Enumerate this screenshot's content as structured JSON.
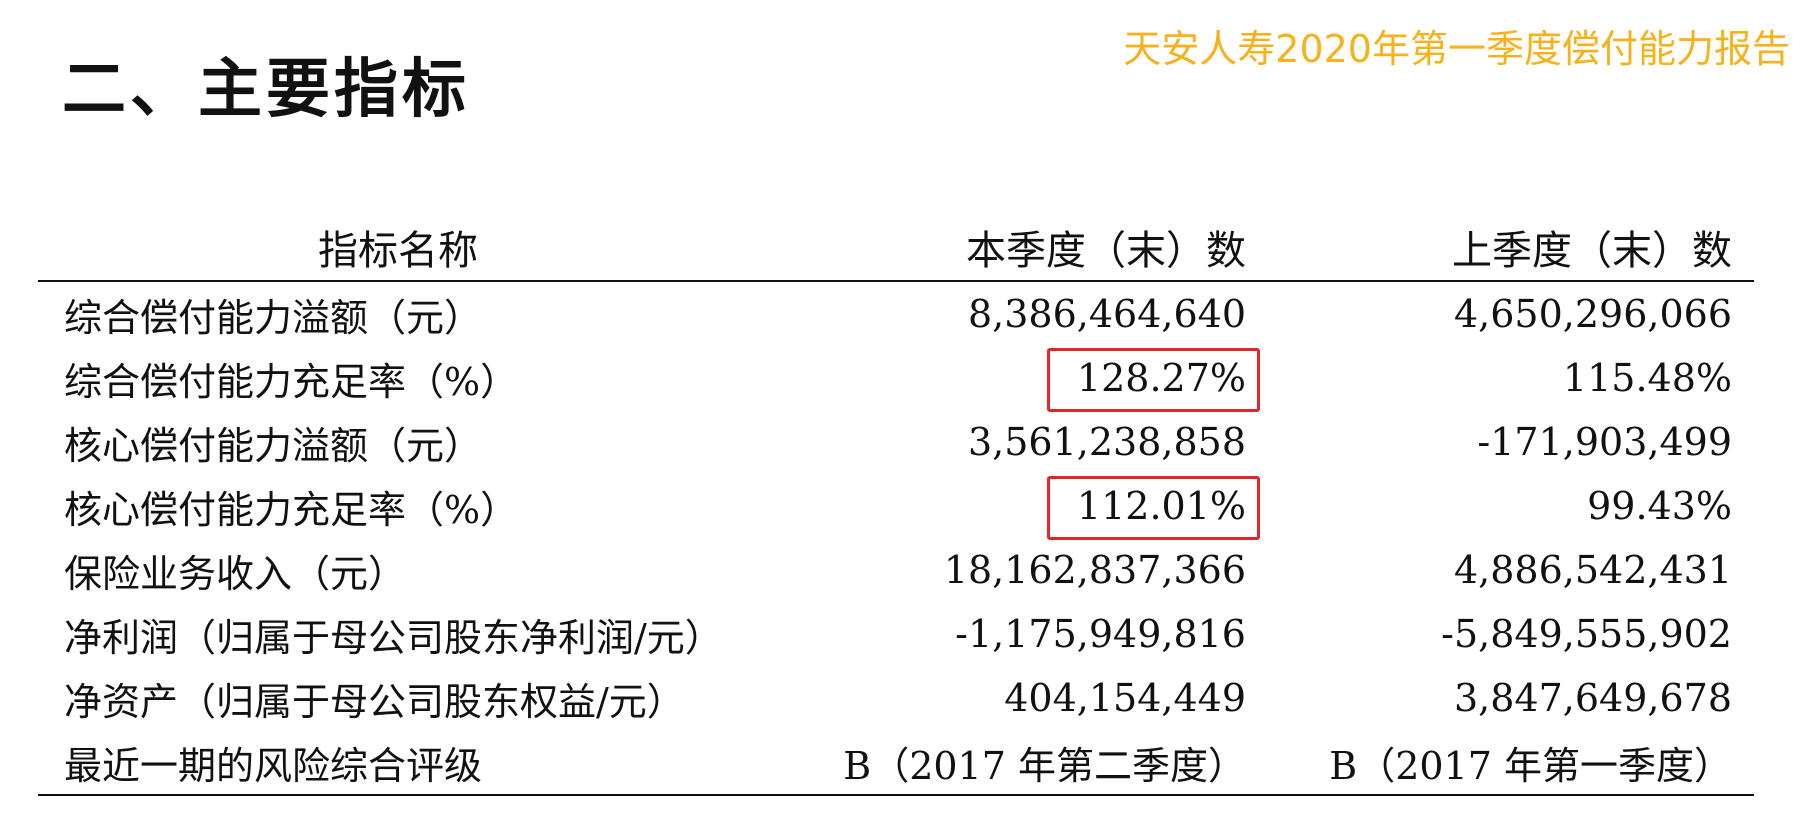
{
  "header": {
    "report_title": "天安人寿2020年第一季度偿付能力报告",
    "section_heading": "二、主要指标"
  },
  "table": {
    "columns": [
      "指标名称",
      "本季度（末）数",
      "上季度（末）数"
    ],
    "rows": [
      {
        "name": "综合偿付能力溢额（元）",
        "current": "8,386,464,640",
        "previous": "4,650,296,066"
      },
      {
        "name": "综合偿付能力充足率（%）",
        "current": "128.27%",
        "previous": "115.48%"
      },
      {
        "name": "核心偿付能力溢额（元）",
        "current": "3,561,238,858",
        "previous": "-171,903,499"
      },
      {
        "name": "核心偿付能力充足率（%）",
        "current": "112.01%",
        "previous": "99.43%"
      },
      {
        "name": "保险业务收入（元）",
        "current": "18,162,837,366",
        "previous": "4,886,542,431"
      },
      {
        "name": "净利润（归属于母公司股东净利润/元）",
        "current": "-1,175,949,816",
        "previous": "-5,849,555,902"
      },
      {
        "name": "净资产（归属于母公司股东权益/元）",
        "current": "404,154,449",
        "previous": "3,847,649,678"
      },
      {
        "name": "最近一期的风险综合评级",
        "current": "B（2017 年第二季度）",
        "previous": "B（2017 年第一季度）"
      }
    ]
  },
  "highlight_color": "#e0262b",
  "title_color": "#f5b21b"
}
